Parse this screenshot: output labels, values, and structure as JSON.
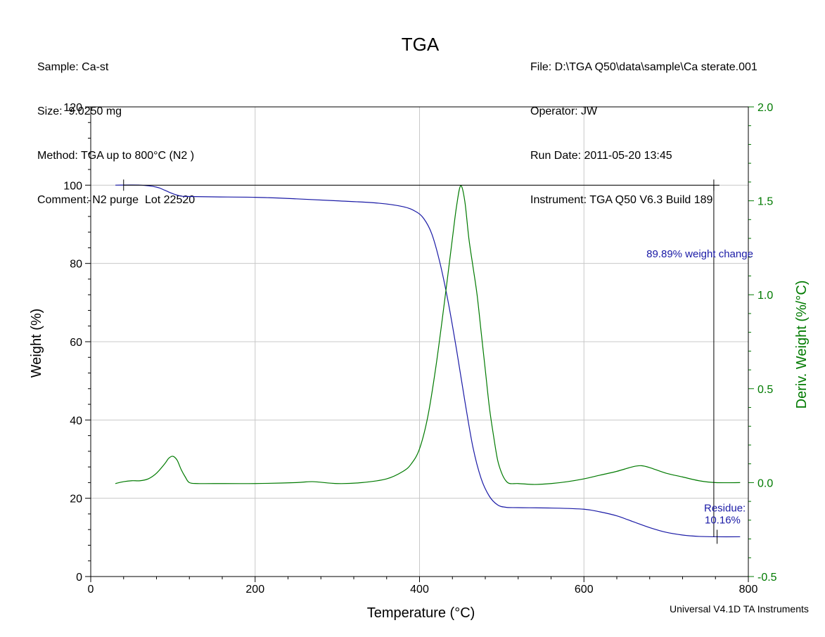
{
  "header": {
    "sample": "Sample: Ca-st",
    "size": "Size:  9.0250 mg",
    "method": "Method: TGA up to 800°C (N2 )",
    "comment": "Comment: N2 purge  Lot 22520",
    "file": "File: D:\\TGA Q50\\data\\sample\\Ca sterate.001",
    "operator": "Operator: JW",
    "run_date": "Run Date: 2011-05-20 13:45",
    "instrument": "Instrument: TGA Q50 V6.3 Build 189"
  },
  "footer": {
    "credit": "Universal V4.1D TA Instruments"
  },
  "chart_data": {
    "type": "line",
    "title": "TGA",
    "xlabel": "Temperature (°C)",
    "ylabel": "Weight (%)",
    "y2label": "Deriv. Weight (%/°C)",
    "xlim": [
      0,
      800
    ],
    "ylim": [
      0,
      120
    ],
    "y2lim": [
      -0.5,
      2.0
    ],
    "grid": true,
    "colors": {
      "weight": "#1a1aa6",
      "deriv": "#007a00",
      "frame": "#000000",
      "grid": "#c8c8c8"
    },
    "x_ticks": [
      "0",
      "200",
      "400",
      "600",
      "800"
    ],
    "y_ticks": [
      "0",
      "20",
      "40",
      "60",
      "80",
      "100",
      "120"
    ],
    "y2_ticks": [
      "-0.5",
      "0.0",
      "0.5",
      "1.0",
      "1.5",
      "2.0"
    ],
    "series": [
      {
        "axis": "left",
        "color": "#1a1aa6",
        "x": [
          30,
          60,
          80,
          90,
          100,
          110,
          120,
          150,
          200,
          250,
          300,
          350,
          380,
          395,
          405,
          415,
          425,
          435,
          445,
          455,
          465,
          475,
          485,
          495,
          505,
          520,
          560,
          600,
          620,
          640,
          660,
          680,
          700,
          720,
          740,
          760,
          790
        ],
        "y": [
          100,
          100,
          99.5,
          98.7,
          97.8,
          97.2,
          97.1,
          97.0,
          96.9,
          96.5,
          96.0,
          95.4,
          94.5,
          93.3,
          91.5,
          87.5,
          80,
          70,
          58,
          45,
          33,
          25,
          20.5,
          18.3,
          17.7,
          17.6,
          17.5,
          17.2,
          16.5,
          15.5,
          14.0,
          12.5,
          11.3,
          10.6,
          10.25,
          10.16,
          10.16
        ]
      },
      {
        "axis": "right",
        "color": "#007a00",
        "x": [
          30,
          40,
          50,
          60,
          70,
          80,
          90,
          95,
          100,
          105,
          110,
          115,
          120,
          130,
          150,
          200,
          250,
          270,
          300,
          330,
          360,
          380,
          390,
          400,
          410,
          420,
          430,
          440,
          445,
          450,
          455,
          460,
          465,
          470,
          475,
          480,
          485,
          490,
          495,
          500,
          505,
          510,
          520,
          540,
          560,
          580,
          600,
          620,
          640,
          660,
          670,
          680,
          700,
          720,
          740,
          760,
          790
        ],
        "y": [
          -0.005,
          0.005,
          0.01,
          0.01,
          0.02,
          0.05,
          0.1,
          0.13,
          0.14,
          0.12,
          0.07,
          0.03,
          0.0,
          -0.005,
          -0.005,
          -0.005,
          0.0,
          0.005,
          -0.005,
          0.0,
          0.02,
          0.06,
          0.1,
          0.18,
          0.35,
          0.62,
          0.95,
          1.3,
          1.47,
          1.58,
          1.5,
          1.3,
          1.15,
          1.0,
          0.8,
          0.6,
          0.4,
          0.25,
          0.12,
          0.05,
          0.01,
          -0.005,
          -0.005,
          -0.01,
          -0.005,
          0.005,
          0.02,
          0.04,
          0.06,
          0.085,
          0.09,
          0.08,
          0.05,
          0.03,
          0.01,
          0.0,
          0.0
        ]
      }
    ],
    "annotations": {
      "weight_change": "89.89% weight change",
      "residue_line1": "Residue:",
      "residue_line2": "10.16%"
    },
    "markers": {
      "start_x": 40,
      "start_y": 100,
      "end_x": 758,
      "end_y": 100,
      "residue_x": 762,
      "residue_y": 10.16,
      "residue_value": 10.16
    }
  }
}
